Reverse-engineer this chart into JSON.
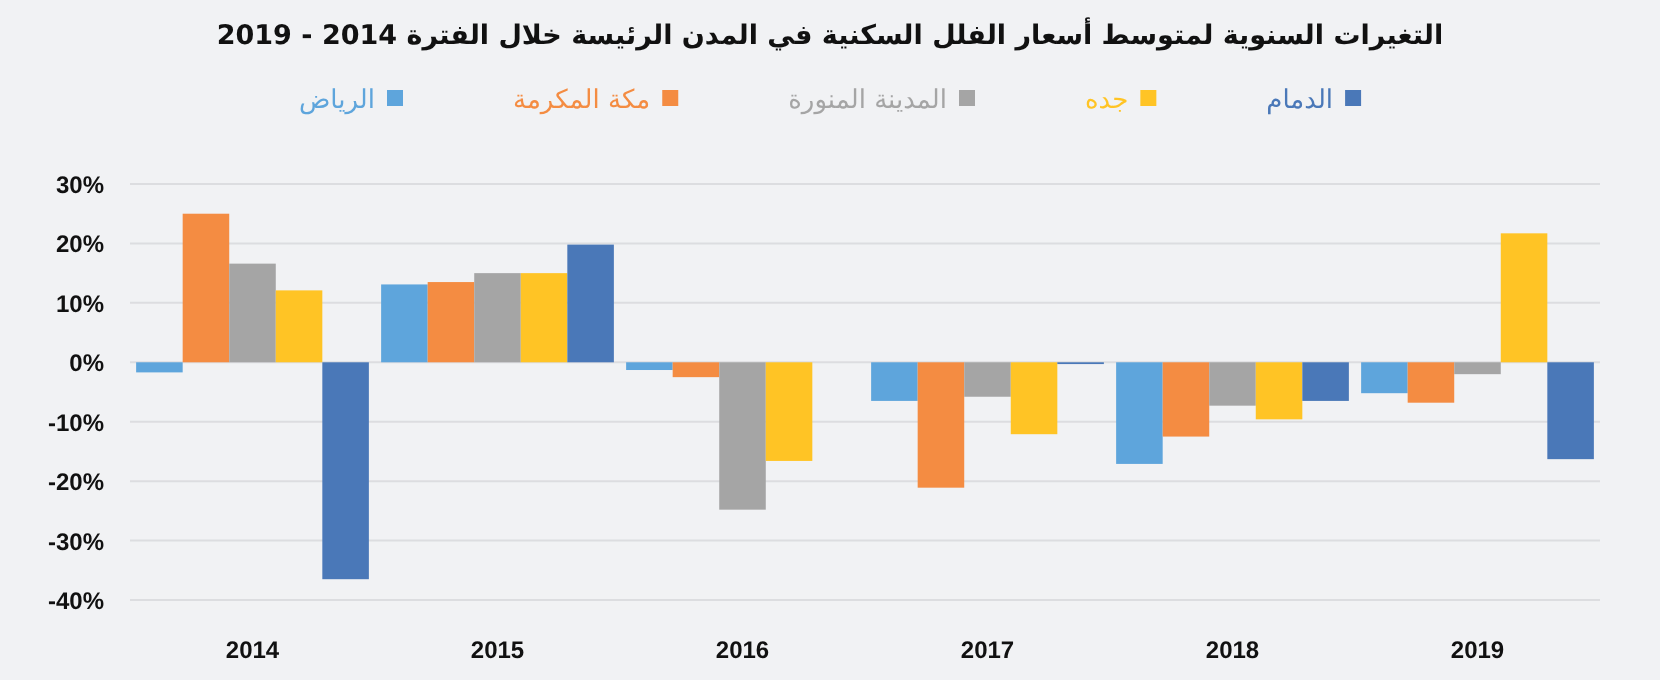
{
  "chart_data": {
    "type": "bar",
    "title": "التغيرات السنوية لمتوسط أسعار الفلل السكنية في المدن الرئيسة خلال الفترة 2014 - 2019",
    "categories": [
      "2014",
      "2015",
      "2016",
      "2017",
      "2018",
      "2019"
    ],
    "series": [
      {
        "name": "الرياض",
        "color": "#5ea5dc",
        "values": [
          -1.7,
          13.1,
          -1.3,
          -6.5,
          -17.1,
          -5.2
        ]
      },
      {
        "name": "مكة المكرمة",
        "color": "#f48c42",
        "values": [
          25,
          13.5,
          -2.5,
          -21.1,
          -12.5,
          -6.8
        ]
      },
      {
        "name": "المدينة المنورة",
        "color": "#a5a5a5",
        "values": [
          16.6,
          15.0,
          -24.8,
          -5.8,
          -7.3,
          -2.0
        ]
      },
      {
        "name": "جده",
        "color": "#ffc425",
        "values": [
          12.1,
          15.0,
          -16.6,
          -12.1,
          -9.6,
          21.7
        ]
      },
      {
        "name": "الدمام",
        "color": "#4a78b8",
        "values": [
          -36.5,
          19.8,
          0,
          -0.3,
          -6.5,
          -16.3
        ]
      }
    ],
    "ylim": [
      -40,
      30
    ],
    "yticks": [
      {
        "value": -40,
        "label": "-40%"
      },
      {
        "value": -30,
        "label": "-30%"
      },
      {
        "value": -20,
        "label": "-20%"
      },
      {
        "value": -10,
        "label": "-10%"
      },
      {
        "value": 0,
        "label": "0%"
      },
      {
        "value": 10,
        "label": "10%"
      },
      {
        "value": 20,
        "label": "20%"
      },
      {
        "value": 30,
        "label": "30%"
      }
    ],
    "grid": "y",
    "legend": "top"
  }
}
